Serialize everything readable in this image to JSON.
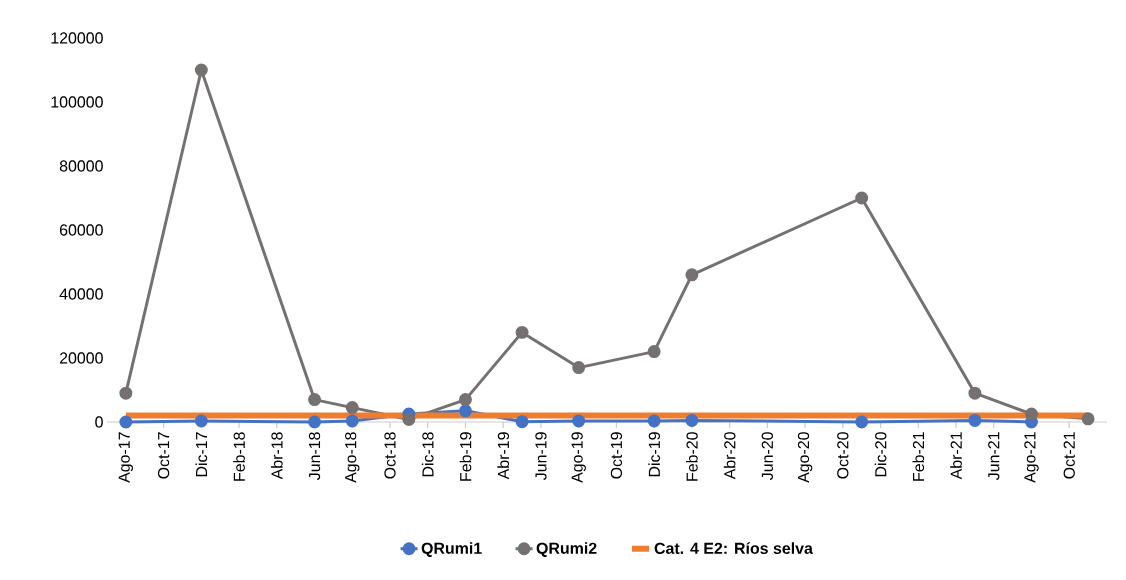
{
  "chart_data": {
    "type": "line",
    "x": [
      "2017-08",
      "2017-12",
      "2018-06",
      "2018-08",
      "2018-11",
      "2019-02",
      "2019-05",
      "2019-08",
      "2019-12",
      "2020-02",
      "2020-11",
      "2021-05",
      "2021-08",
      "2021-11"
    ],
    "series": [
      {
        "name": "QRumi1",
        "color": "#4472c4",
        "marker": "circle",
        "values": [
          0,
          300,
          0,
          300,
          2500,
          3500,
          100,
          300,
          300,
          500,
          0,
          500,
          0,
          null
        ]
      },
      {
        "name": "QRumi2",
        "color": "#767171",
        "marker": "circle",
        "values": [
          9000,
          110000,
          7000,
          4500,
          800,
          7000,
          28000,
          17000,
          22000,
          46000,
          70000,
          9000,
          2500,
          1000
        ]
      },
      {
        "name": "Cat. 4 E2: Ríos selva",
        "color": "#ed7d31",
        "marker": "none",
        "x": [
          "2017-08",
          "2021-11"
        ],
        "values": [
          2000,
          2000
        ]
      }
    ],
    "xlim": [
      "2017-07",
      "2021-12"
    ],
    "xticks": [
      {
        "value": "2017-08",
        "label": "Ago-17"
      },
      {
        "value": "2017-10",
        "label": "Oct-17"
      },
      {
        "value": "2017-12",
        "label": "Dic-17"
      },
      {
        "value": "2018-02",
        "label": "Feb-18"
      },
      {
        "value": "2018-04",
        "label": "Abr-18"
      },
      {
        "value": "2018-06",
        "label": "Jun-18"
      },
      {
        "value": "2018-08",
        "label": "Ago-18"
      },
      {
        "value": "2018-10",
        "label": "Oct-18"
      },
      {
        "value": "2018-12",
        "label": "Dic-18"
      },
      {
        "value": "2019-02",
        "label": "Feb-19"
      },
      {
        "value": "2019-04",
        "label": "Abr-19"
      },
      {
        "value": "2019-06",
        "label": "Jun-19"
      },
      {
        "value": "2019-08",
        "label": "Ago-19"
      },
      {
        "value": "2019-10",
        "label": "Oct-19"
      },
      {
        "value": "2019-12",
        "label": "Dic-19"
      },
      {
        "value": "2020-02",
        "label": "Feb-20"
      },
      {
        "value": "2020-04",
        "label": "Abr-20"
      },
      {
        "value": "2020-06",
        "label": "Jun-20"
      },
      {
        "value": "2020-08",
        "label": "Ago-20"
      },
      {
        "value": "2020-10",
        "label": "Oct-20"
      },
      {
        "value": "2020-12",
        "label": "Dic-20"
      },
      {
        "value": "2021-02",
        "label": "Feb-21"
      },
      {
        "value": "2021-04",
        "label": "Abr-21"
      },
      {
        "value": "2021-06",
        "label": "Jun-21"
      },
      {
        "value": "2021-08",
        "label": "Ago-21"
      },
      {
        "value": "2021-10",
        "label": "Oct-21"
      }
    ],
    "ylim": [
      0,
      120000
    ],
    "yticks": [
      0,
      20000,
      40000,
      60000,
      80000,
      100000,
      120000
    ],
    "grid": false,
    "legend": "bottom"
  }
}
